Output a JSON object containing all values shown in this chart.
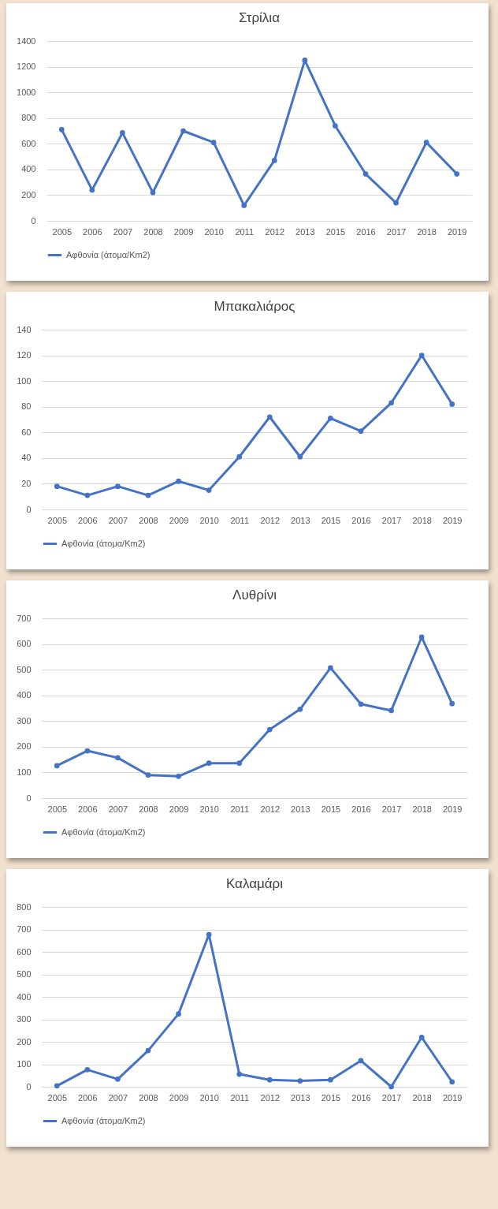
{
  "chart_data": [
    {
      "type": "line",
      "title": "Στρίλια",
      "categories": [
        "2005",
        "2006",
        "2007",
        "2008",
        "2009",
        "2010",
        "2011",
        "2012",
        "2013",
        "2015",
        "2016",
        "2017",
        "2018",
        "2019"
      ],
      "series": [
        {
          "name": "Αφθονία (άτομα/Km2)",
          "color": "#4472c4",
          "values": [
            710,
            240,
            685,
            220,
            700,
            610,
            120,
            470,
            1250,
            740,
            365,
            140,
            610,
            365
          ]
        }
      ],
      "ylim": [
        0,
        1400
      ],
      "yticks": [
        0,
        200,
        400,
        600,
        800,
        1000,
        1200,
        1400
      ],
      "grid": "y",
      "legend": "bottom",
      "marker": "circle"
    },
    {
      "type": "line",
      "title": "Μπακαλιάρος",
      "categories": [
        "2005",
        "2006",
        "2007",
        "2008",
        "2009",
        "2010",
        "2011",
        "2012",
        "2013",
        "2015",
        "2016",
        "2017",
        "2018",
        "2019"
      ],
      "series": [
        {
          "name": "Αφθονία (άτομα/Km2)",
          "color": "#4472c4",
          "values": [
            18,
            11,
            18,
            11,
            22,
            15,
            41,
            72,
            41,
            71,
            61,
            83,
            120,
            82
          ]
        }
      ],
      "ylim": [
        0,
        140
      ],
      "yticks": [
        0,
        20,
        40,
        60,
        80,
        100,
        120,
        140
      ],
      "grid": "y",
      "legend": "bottom",
      "marker": "circle"
    },
    {
      "type": "line",
      "title": "Λυθρίνι",
      "categories": [
        "2005",
        "2006",
        "2007",
        "2008",
        "2009",
        "2010",
        "2011",
        "2012",
        "2013",
        "2015",
        "2016",
        "2017",
        "2018",
        "2019"
      ],
      "series": [
        {
          "name": "Αφθονία (άτομα/Km2)",
          "color": "#4472c4",
          "values": [
            126,
            184,
            157,
            90,
            85,
            136,
            136,
            267,
            346,
            507,
            366,
            341,
            627,
            368
          ]
        }
      ],
      "ylim": [
        0,
        700
      ],
      "yticks": [
        0,
        100,
        200,
        300,
        400,
        500,
        600,
        700
      ],
      "grid": "y",
      "legend": "bottom",
      "marker": "circle"
    },
    {
      "type": "line",
      "title": "Καλαμάρι",
      "categories": [
        "2005",
        "2006",
        "2007",
        "2008",
        "2009",
        "2010",
        "2011",
        "2012",
        "2013",
        "2015",
        "2016",
        "2017",
        "2018",
        "2019"
      ],
      "series": [
        {
          "name": "Αφθονία (άτομα/Km2)",
          "color": "#4472c4",
          "values": [
            4,
            76,
            34,
            161,
            324,
            677,
            56,
            31,
            26,
            31,
            116,
            0,
            220,
            22
          ]
        }
      ],
      "ylim": [
        0,
        800
      ],
      "yticks": [
        0,
        100,
        200,
        300,
        400,
        500,
        600,
        700,
        800
      ],
      "grid": "y",
      "legend": "bottom",
      "marker": "circle"
    }
  ]
}
